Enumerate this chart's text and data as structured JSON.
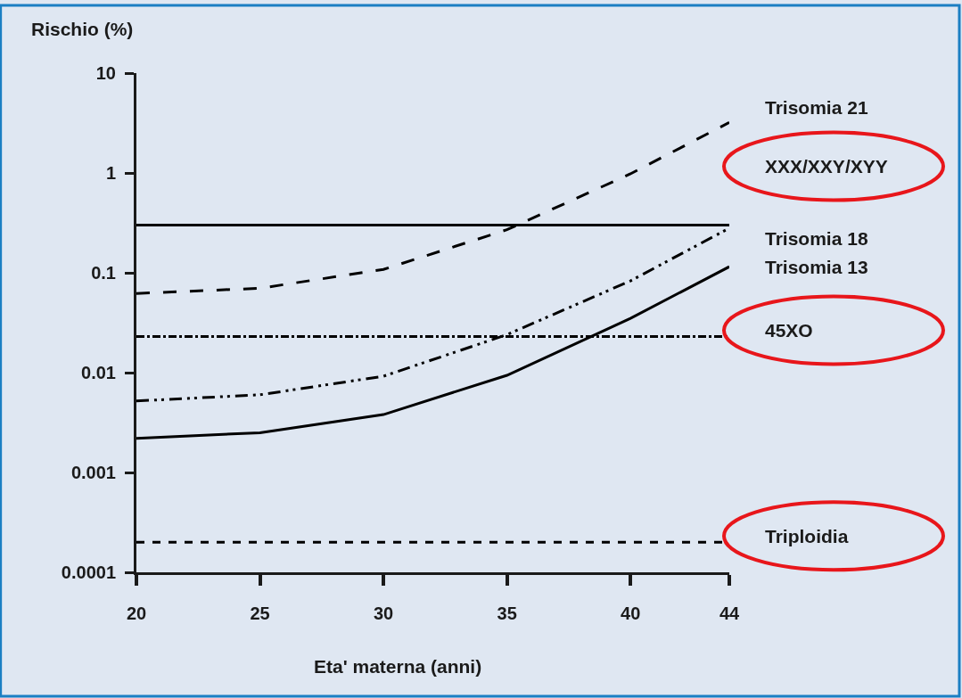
{
  "chart_data": {
    "type": "line",
    "ylabel": "Rischio (%)",
    "xlabel": "Eta' materna (anni)",
    "x": [
      20,
      25,
      30,
      35,
      40,
      44
    ],
    "log": "y",
    "xlim": [
      20,
      44
    ],
    "xticks": [
      20,
      25,
      30,
      35,
      40,
      44
    ],
    "ylim": [
      0.0001,
      10
    ],
    "yticks": [
      0.0001,
      0.001,
      0.01,
      0.1,
      1,
      10
    ],
    "grid": false,
    "legend": false,
    "marker": "none",
    "series": [
      {
        "name": "Trisomia 21",
        "color": "#000000",
        "line_style": "longdash",
        "values": [
          0.062,
          0.07,
          0.108,
          0.27,
          0.98,
          3.2
        ]
      },
      {
        "name": "XXX/XXY/XYY",
        "color": "#000000",
        "line_style": "solid",
        "values": [
          0.3,
          0.3,
          0.3,
          0.3,
          0.3,
          0.3
        ]
      },
      {
        "name": "Trisomia 18",
        "color": "#000000",
        "line_style": "dashdotdot",
        "values": [
          0.0052,
          0.006,
          0.0092,
          0.024,
          0.083,
          0.28
        ]
      },
      {
        "name": "Trisomia 13",
        "color": "#000000",
        "line_style": "solid",
        "values": [
          0.0022,
          0.0025,
          0.0038,
          0.0094,
          0.035,
          0.115
        ]
      },
      {
        "name": "45XO",
        "color": "#000000",
        "line_style": "dashdot",
        "values": [
          0.023,
          0.023,
          0.023,
          0.023,
          0.023,
          0.023
        ]
      },
      {
        "name": "Triploidia",
        "color": "#000000",
        "line_style": "dashed",
        "values": [
          0.0002,
          0.0002,
          0.0002,
          0.0002,
          0.0002,
          0.0002
        ]
      }
    ]
  }
}
